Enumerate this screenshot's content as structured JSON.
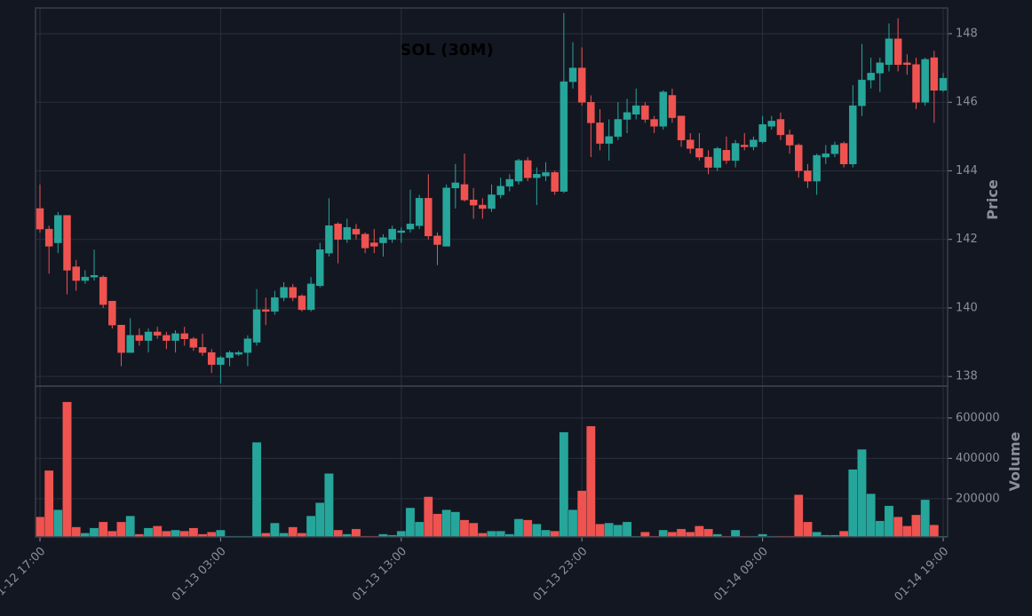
{
  "chart_data": {
    "type": "candlestick",
    "title": "SOL (30M)",
    "ylabel": "Price",
    "volume_label": "Volume",
    "up_color": "#26a69a",
    "down_color": "#ef5350",
    "grid": true,
    "ylim": [
      137.72,
      148.75
    ],
    "yticks": [
      138,
      140,
      142,
      144,
      146,
      148
    ],
    "volume_ylim": [
      10000,
      758000
    ],
    "volume_yticks": [
      200000,
      400000,
      600000
    ],
    "xticks": [
      {
        "value": 0,
        "label": "01-12 17:00"
      },
      {
        "value": 20,
        "label": "01-13 03:00"
      },
      {
        "value": 40,
        "label": "01-13 13:00"
      },
      {
        "value": 60,
        "label": "01-13 23:00"
      },
      {
        "value": 80,
        "label": "01-14 09:00"
      },
      {
        "value": 100,
        "label": "01-14 19:00"
      }
    ],
    "open": [
      142.9,
      142.3,
      141.9,
      142.7,
      141.2,
      140.8,
      140.9,
      140.9,
      140.2,
      139.5,
      138.7,
      139.2,
      139.05,
      139.3,
      139.2,
      139.05,
      139.25,
      139.1,
      138.85,
      138.7,
      138.35,
      138.55,
      138.65,
      138.7,
      139.0,
      139.95,
      139.9,
      140.3,
      140.6,
      140.35,
      139.95,
      140.65,
      141.6,
      142.45,
      142.0,
      142.3,
      142.15,
      141.9,
      141.9,
      142.0,
      142.2,
      142.3,
      142.4,
      143.2,
      142.1,
      141.8,
      143.5,
      143.6,
      143.15,
      143.0,
      142.9,
      143.3,
      143.55,
      143.7,
      144.3,
      143.8,
      143.85,
      143.95,
      143.4,
      146.6,
      147.0,
      146.0,
      145.4,
      144.8,
      145.0,
      145.5,
      145.65,
      145.9,
      145.5,
      145.3,
      146.2,
      145.6,
      144.9,
      144.65,
      144.4,
      144.1,
      144.6,
      144.3,
      144.75,
      144.7,
      144.85,
      145.3,
      145.5,
      145.05,
      144.75,
      144.0,
      143.7,
      144.4,
      144.5,
      144.8,
      144.2,
      145.9,
      146.65,
      146.85,
      147.1,
      147.85,
      147.15,
      147.1,
      146.0,
      147.3,
      146.35
    ],
    "high": [
      143.6,
      142.4,
      142.8,
      142.7,
      141.4,
      141.1,
      141.7,
      140.95,
      140.2,
      139.5,
      139.7,
      139.4,
      139.4,
      139.45,
      139.3,
      139.35,
      139.45,
      139.15,
      139.25,
      138.8,
      138.6,
      138.75,
      138.75,
      139.2,
      140.55,
      140.3,
      140.5,
      140.75,
      140.7,
      140.4,
      140.9,
      141.9,
      143.2,
      142.5,
      142.6,
      142.45,
      142.2,
      142.3,
      142.15,
      142.4,
      142.35,
      143.45,
      143.3,
      143.9,
      142.2,
      143.6,
      144.2,
      144.5,
      143.5,
      143.2,
      143.6,
      143.8,
      143.9,
      144.35,
      144.4,
      144.1,
      144.25,
      144.0,
      148.6,
      147.75,
      147.6,
      146.2,
      145.8,
      145.5,
      146.0,
      146.1,
      146.4,
      146.0,
      145.6,
      146.35,
      146.4,
      145.6,
      145.1,
      145.1,
      144.6,
      144.7,
      145.0,
      144.9,
      145.1,
      145.0,
      145.6,
      145.6,
      145.7,
      145.2,
      144.8,
      144.2,
      144.5,
      144.75,
      144.85,
      144.85,
      146.5,
      147.7,
      147.3,
      147.3,
      148.3,
      148.45,
      147.4,
      147.3,
      147.3,
      147.5,
      146.85
    ],
    "low": [
      142.2,
      141.0,
      141.6,
      140.4,
      140.5,
      140.7,
      140.8,
      140.0,
      139.4,
      138.3,
      138.7,
      138.9,
      138.7,
      139.1,
      138.8,
      138.7,
      138.9,
      138.75,
      138.6,
      138.1,
      137.8,
      138.3,
      138.6,
      138.3,
      138.9,
      139.5,
      139.8,
      140.2,
      140.2,
      139.9,
      139.9,
      140.6,
      141.5,
      141.3,
      141.9,
      142.0,
      141.6,
      141.6,
      141.5,
      141.9,
      141.9,
      142.2,
      142.3,
      142.0,
      141.25,
      141.8,
      142.9,
      143.1,
      142.6,
      142.6,
      142.8,
      143.2,
      143.4,
      143.6,
      143.7,
      143.0,
      143.7,
      143.3,
      143.35,
      146.4,
      145.9,
      144.4,
      144.6,
      144.3,
      144.9,
      145.1,
      145.5,
      145.4,
      145.1,
      145.2,
      145.4,
      144.7,
      144.5,
      144.3,
      143.9,
      144.0,
      144.2,
      144.1,
      144.6,
      144.6,
      144.8,
      145.2,
      144.9,
      144.5,
      143.8,
      143.5,
      143.3,
      144.2,
      144.4,
      144.1,
      144.1,
      145.6,
      146.4,
      146.3,
      146.9,
      146.9,
      146.8,
      145.8,
      145.9,
      145.4,
      146.3
    ],
    "close": [
      142.3,
      141.8,
      142.7,
      141.1,
      140.8,
      140.9,
      140.95,
      140.1,
      139.5,
      138.7,
      139.2,
      139.05,
      139.3,
      139.2,
      139.05,
      139.25,
      139.1,
      138.85,
      138.7,
      138.35,
      138.55,
      138.7,
      138.7,
      139.1,
      139.95,
      139.9,
      140.3,
      140.6,
      140.3,
      139.95,
      140.7,
      141.7,
      142.4,
      142.0,
      142.35,
      142.15,
      141.75,
      141.8,
      142.05,
      142.3,
      142.25,
      142.45,
      143.2,
      142.1,
      141.85,
      143.5,
      143.65,
      143.15,
      143.0,
      142.9,
      143.3,
      143.55,
      143.75,
      144.3,
      143.8,
      143.9,
      143.95,
      143.4,
      146.6,
      147.0,
      146.0,
      145.4,
      144.8,
      145.0,
      145.5,
      145.7,
      145.9,
      145.5,
      145.3,
      146.3,
      145.55,
      144.9,
      144.65,
      144.4,
      144.1,
      144.65,
      144.3,
      144.8,
      144.7,
      144.9,
      145.35,
      145.45,
      145.05,
      144.75,
      144.0,
      143.7,
      144.45,
      144.5,
      144.75,
      144.2,
      145.9,
      146.65,
      146.85,
      147.15,
      147.85,
      147.1,
      147.1,
      146.0,
      147.25,
      146.35,
      146.7
    ],
    "volume": [
      110000,
      340000,
      145000,
      680000,
      60000,
      30000,
      55000,
      85000,
      40000,
      85000,
      115000,
      25000,
      55000,
      65000,
      40000,
      45000,
      40000,
      55000,
      25000,
      35000,
      45000,
      15000,
      15000,
      15000,
      480000,
      30000,
      80000,
      30000,
      60000,
      30000,
      115000,
      180000,
      325000,
      45000,
      25000,
      50000,
      15000,
      15000,
      25000,
      20000,
      40000,
      155000,
      85000,
      210000,
      125000,
      145000,
      135000,
      95000,
      80000,
      30000,
      40000,
      40000,
      25000,
      100000,
      95000,
      75000,
      45000,
      40000,
      530000,
      145000,
      240000,
      560000,
      75000,
      80000,
      70000,
      85000,
      15000,
      35000,
      15000,
      45000,
      35000,
      50000,
      35000,
      65000,
      50000,
      25000,
      15000,
      45000,
      15000,
      15000,
      25000,
      15000,
      15000,
      15000,
      220000,
      85000,
      35000,
      20000,
      20000,
      40000,
      345000,
      445000,
      225000,
      90000,
      165000,
      110000,
      65000,
      120000,
      195000,
      70000,
      15000
    ]
  }
}
